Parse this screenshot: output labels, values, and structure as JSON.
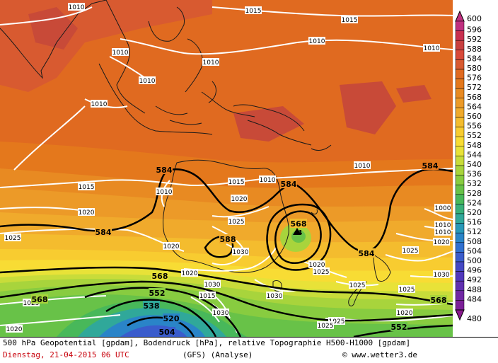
{
  "footer": {
    "line1": "500 hPa Geopotential [gpdam], Bodendruck [hPa], relative Topographie H500-H1000 [gpdam]",
    "date": "Dienstag, 21-04-2015  06 UTC",
    "model": "(GFS)   (Analyse)",
    "credit": "© www.wetter3.de"
  },
  "legend": {
    "values": [
      "600",
      "596",
      "592",
      "588",
      "584",
      "580",
      "576",
      "572",
      "568",
      "564",
      "560",
      "556",
      "552",
      "548",
      "544",
      "540",
      "536",
      "532",
      "528",
      "524",
      "520",
      "516",
      "512",
      "508",
      "504",
      "500",
      "496",
      "492",
      "488",
      "484",
      "480"
    ],
    "colors": [
      "#c03080",
      "#c83050",
      "#c84040",
      "#d84a3a",
      "#d85a30",
      "#e06a20",
      "#e4781c",
      "#e88a22",
      "#ec9a28",
      "#f0aa2c",
      "#f4bc2e",
      "#f8cc30",
      "#f8dc34",
      "#e8e238",
      "#c8dc3a",
      "#a8d43c",
      "#88cc40",
      "#68c248",
      "#48b85a",
      "#38b07a",
      "#30a89a",
      "#2898b8",
      "#2a84c8",
      "#3070d0",
      "#3a5ccc",
      "#4448c4",
      "#5038bc",
      "#6030b0",
      "#7028a4",
      "#7c2098",
      "#88188c"
    ]
  },
  "map": {
    "geopotential_labels": [
      "584",
      "584",
      "584",
      "584",
      "584",
      "588",
      "568",
      "568",
      "568",
      "568",
      "552",
      "552",
      "538",
      "520",
      "504"
    ],
    "isobar_labels": [
      "1010",
      "1010",
      "1015",
      "1010",
      "1015",
      "1010",
      "1010",
      "1010",
      "1010",
      "1010",
      "1015",
      "1010",
      "1015",
      "1020",
      "1025",
      "1010",
      "1020",
      "1025",
      "1030",
      "1020",
      "1020",
      "1025",
      "1030",
      "1025",
      "1025",
      "1020",
      "1030",
      "1015",
      "1020",
      "1025",
      "1030",
      "1025",
      "1010",
      "1010",
      "1000",
      "1020",
      "1025",
      "1030",
      "1025",
      "1020"
    ],
    "low_marker": "4"
  }
}
